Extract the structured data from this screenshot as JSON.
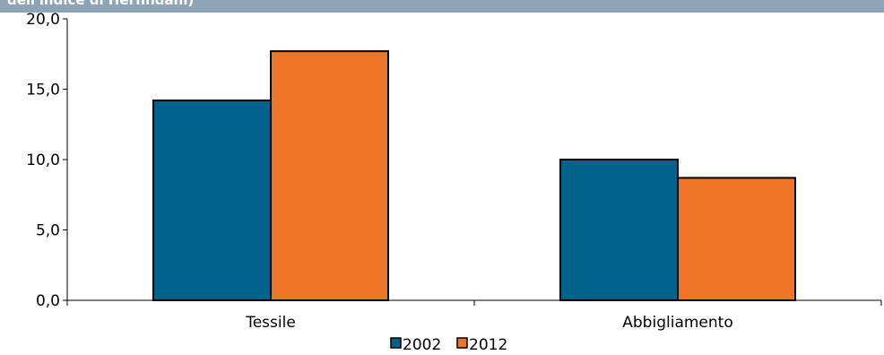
{
  "chart_data": {
    "type": "bar",
    "title": "dell'indice di Herfindahl)",
    "categories": [
      "Tessile",
      "Abbigliamento"
    ],
    "series": [
      {
        "name": "2002",
        "values": [
          14.2,
          10.0
        ],
        "color": "#00628b"
      },
      {
        "name": "2012",
        "values": [
          17.7,
          8.7
        ],
        "color": "#f07427"
      }
    ],
    "ylim": [
      0,
      20
    ],
    "yticks": [
      "0,0",
      "5,0",
      "10,0",
      "15,0",
      "20,0"
    ],
    "ytick_values": [
      0,
      5,
      10,
      15,
      20
    ],
    "grid": false,
    "legend": "bottom-center",
    "xlabel": "",
    "ylabel": ""
  }
}
